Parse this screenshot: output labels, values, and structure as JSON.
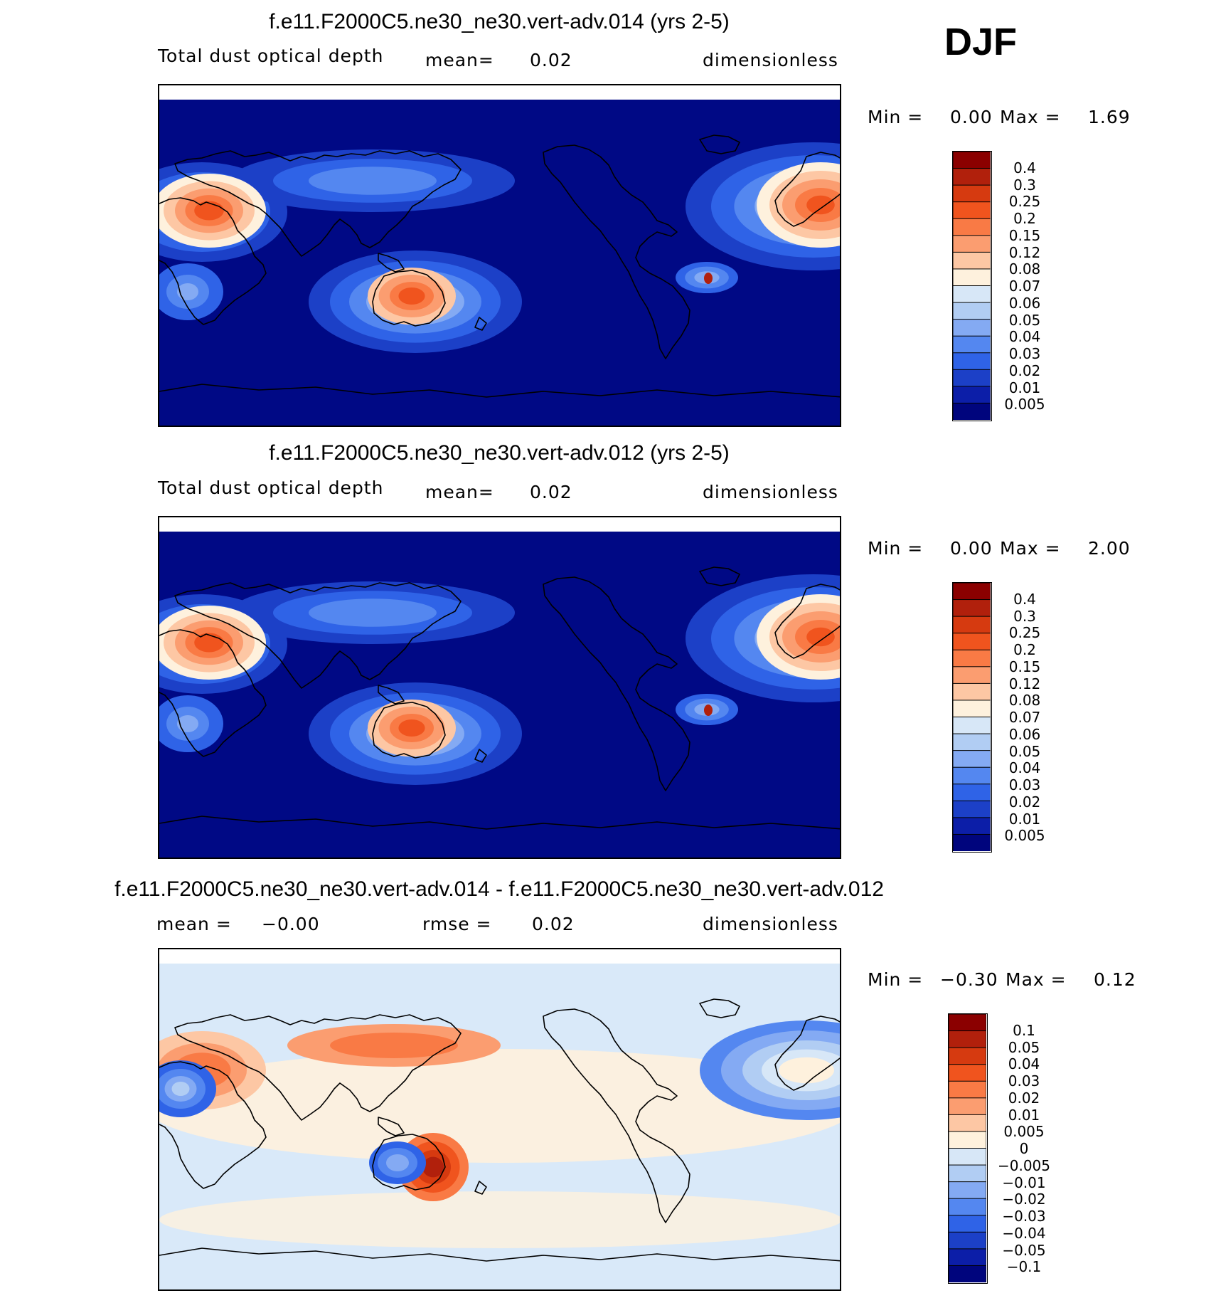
{
  "season": "DJF",
  "panels": [
    {
      "title": "f.e11.F2000C5.ne30_ne30.vert-adv.014 (yrs 2-5)",
      "field_label": "Total dust optical depth",
      "stat1_label": "mean=",
      "stat1_value": "0.02",
      "stat2_label": "",
      "stat2_value": "",
      "units": "dimensionless",
      "min_label": "Min =",
      "min_value": "0.00",
      "max_label": "Max =",
      "max_value": "1.69",
      "levels": [
        "0.4",
        "0.3",
        "0.25",
        "0.2",
        "0.15",
        "0.12",
        "0.08",
        "0.07",
        "0.06",
        "0.05",
        "0.04",
        "0.03",
        "0.02",
        "0.01",
        "0.005"
      ],
      "colors": [
        "#8b0000",
        "#b1200c",
        "#d63a10",
        "#f0541e",
        "#f97a45",
        "#fb9d70",
        "#fdc7a4",
        "#fef1dd",
        "#d7e7f7",
        "#b1cdf3",
        "#84aaf3",
        "#5487f0",
        "#2f63e7",
        "#1c40c7",
        "#0c1ea8",
        "#00057d"
      ],
      "background": "#000985"
    },
    {
      "title": "f.e11.F2000C5.ne30_ne30.vert-adv.012 (yrs 2-5)",
      "field_label": "Total dust optical depth",
      "stat1_label": "mean=",
      "stat1_value": "0.02",
      "stat2_label": "",
      "stat2_value": "",
      "units": "dimensionless",
      "min_label": "Min =",
      "min_value": "0.00",
      "max_label": "Max =",
      "max_value": "2.00",
      "levels": [
        "0.4",
        "0.3",
        "0.25",
        "0.2",
        "0.15",
        "0.12",
        "0.08",
        "0.07",
        "0.06",
        "0.05",
        "0.04",
        "0.03",
        "0.02",
        "0.01",
        "0.005"
      ],
      "colors": [
        "#8b0000",
        "#b1200c",
        "#d63a10",
        "#f0541e",
        "#f97a45",
        "#fb9d70",
        "#fdc7a4",
        "#fef1dd",
        "#d7e7f7",
        "#b1cdf3",
        "#84aaf3",
        "#5487f0",
        "#2f63e7",
        "#1c40c7",
        "#0c1ea8",
        "#00057d"
      ],
      "background": "#000985"
    },
    {
      "title": "f.e11.F2000C5.ne30_ne30.vert-adv.014 - f.e11.F2000C5.ne30_ne30.vert-adv.012",
      "field_label": "",
      "stat1_label": "mean =",
      "stat1_value": "−0.00",
      "stat2_label": "rmse =",
      "stat2_value": "0.02",
      "units": "dimensionless",
      "min_label": "Min =",
      "min_value": "−0.30",
      "max_label": "Max =",
      "max_value": "0.12",
      "levels": [
        "0.1",
        "0.05",
        "0.04",
        "0.03",
        "0.02",
        "0.01",
        "0.005",
        "0",
        "−0.005",
        "−0.01",
        "−0.02",
        "−0.03",
        "−0.04",
        "−0.05",
        "−0.1"
      ],
      "colors": [
        "#8b0000",
        "#b1200c",
        "#d63a10",
        "#f0541e",
        "#f97a45",
        "#fb9d70",
        "#fdc7a4",
        "#fef1dd",
        "#d7e7f7",
        "#b1cdf3",
        "#84aaf3",
        "#5487f0",
        "#2f63e7",
        "#1c40c7",
        "#0c1ea8",
        "#00057d"
      ],
      "background": "#d9e9f9"
    }
  ],
  "chart_data": [
    {
      "type": "heatmap",
      "title": "f.e11.F2000C5.ne30_ne30.vert-adv.014 (yrs 2-5)",
      "variable": "Total dust optical depth",
      "units": "dimensionless",
      "mean": 0.02,
      "min": 0.0,
      "max": 1.69,
      "contour_levels": [
        0.005,
        0.01,
        0.02,
        0.03,
        0.04,
        0.05,
        0.06,
        0.07,
        0.08,
        0.12,
        0.15,
        0.2,
        0.25,
        0.3,
        0.4
      ]
    },
    {
      "type": "heatmap",
      "title": "f.e11.F2000C5.ne30_ne30.vert-adv.012 (yrs 2-5)",
      "variable": "Total dust optical depth",
      "units": "dimensionless",
      "mean": 0.02,
      "min": 0.0,
      "max": 2.0,
      "contour_levels": [
        0.005,
        0.01,
        0.02,
        0.03,
        0.04,
        0.05,
        0.06,
        0.07,
        0.08,
        0.12,
        0.15,
        0.2,
        0.25,
        0.3,
        0.4
      ]
    },
    {
      "type": "heatmap",
      "title": "f.e11.F2000C5.ne30_ne30.vert-adv.014 - f.e11.F2000C5.ne30_ne30.vert-adv.012",
      "units": "dimensionless",
      "mean": -0.0,
      "rmse": 0.02,
      "min": -0.3,
      "max": 0.12,
      "contour_levels": [
        -0.1,
        -0.05,
        -0.04,
        -0.03,
        -0.02,
        -0.01,
        -0.005,
        0,
        0.005,
        0.01,
        0.02,
        0.03,
        0.04,
        0.05,
        0.1
      ]
    }
  ]
}
